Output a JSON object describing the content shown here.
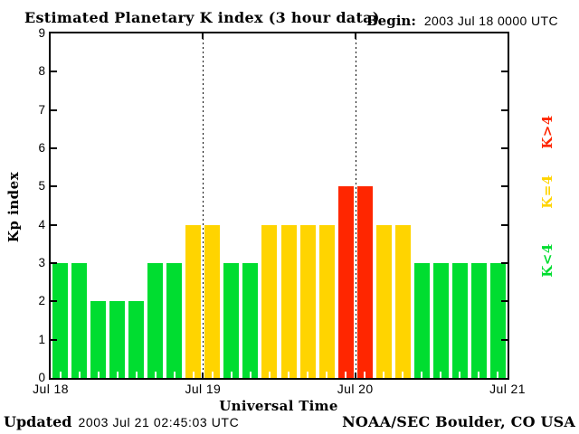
{
  "title": "Estimated Planetary K index (3 hour data)",
  "begin": {
    "label": "Begin:",
    "value": "2003 Jul 18 0000 UTC"
  },
  "footer": {
    "updated_label": "Updated",
    "updated_value": "2003 Jul 21 02:45:03 UTC",
    "credit": "NOAA/SEC Boulder, CO USA"
  },
  "chart_data": {
    "type": "bar",
    "title": "Estimated Planetary K index (3 hour data)",
    "xlabel": "Universal Time",
    "ylabel": "Kp index",
    "ylim": [
      0,
      9
    ],
    "yticks": [
      0,
      1,
      2,
      3,
      4,
      5,
      6,
      7,
      8,
      9
    ],
    "x_day_tick_labels": [
      "Jul 18",
      "Jul 19",
      "Jul 20",
      "Jul 21"
    ],
    "hours_per_bar": 3,
    "bars_per_day": 8,
    "values": [
      3,
      3,
      2,
      2,
      2,
      3,
      3,
      4,
      4,
      3,
      3,
      4,
      4,
      4,
      4,
      5,
      5,
      4,
      4,
      3,
      3,
      3,
      3,
      3
    ],
    "colors": {
      "low": "#00dd30",
      "mid": "#ffd400",
      "high": "#ff2600"
    },
    "color_rule": {
      "low": "K<4",
      "mid": "K=4",
      "high": "K>4"
    },
    "day_boundary_lines": "dotted",
    "legend_position": "right",
    "legend": [
      {
        "label": "K>4",
        "color_key": "high"
      },
      {
        "label": "K=4",
        "color_key": "mid"
      },
      {
        "label": "K<4",
        "color_key": "low"
      }
    ]
  }
}
